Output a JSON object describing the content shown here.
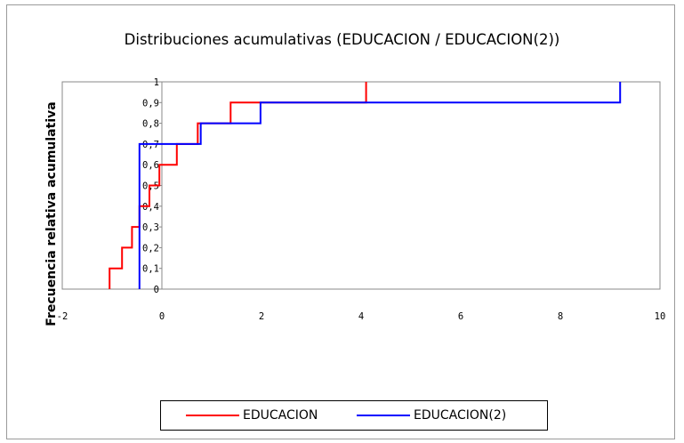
{
  "chart_data": {
    "type": "line",
    "title": "Distribuciones acumulativas (EDUCACION / EDUCACION(2))",
    "xlabel": "",
    "ylabel": "Frecuencia relativa acumulativa",
    "xlim": [
      -2,
      10
    ],
    "ylim": [
      0,
      1
    ],
    "x_ticks": [
      "-2",
      "0",
      "2",
      "4",
      "6",
      "8",
      "10"
    ],
    "y_ticks": [
      "0",
      "0,1",
      "0,2",
      "0,3",
      "0,4",
      "0,5",
      "0,6",
      "0,7",
      "0,8",
      "0,9",
      "1"
    ],
    "grid": false,
    "legend_position": "bottom",
    "series": [
      {
        "name": "EDUCACION",
        "color": "#ff0000",
        "steps": [
          {
            "x": -1.05,
            "y": 0.1
          },
          {
            "x": -0.8,
            "y": 0.2
          },
          {
            "x": -0.6,
            "y": 0.3
          },
          {
            "x": -0.45,
            "y": 0.4
          },
          {
            "x": -0.25,
            "y": 0.5
          },
          {
            "x": -0.05,
            "y": 0.6
          },
          {
            "x": 0.3,
            "y": 0.7
          },
          {
            "x": 0.72,
            "y": 0.8
          },
          {
            "x": 1.38,
            "y": 0.9
          },
          {
            "x": 4.1,
            "y": 1.0
          }
        ]
      },
      {
        "name": "EDUCACION(2)",
        "color": "#0000ff",
        "steps": [
          {
            "x": -0.45,
            "y": 0.7
          },
          {
            "x": 0.78,
            "y": 0.8
          },
          {
            "x": 1.98,
            "y": 0.9
          },
          {
            "x": 9.2,
            "y": 1.0
          }
        ]
      }
    ]
  }
}
